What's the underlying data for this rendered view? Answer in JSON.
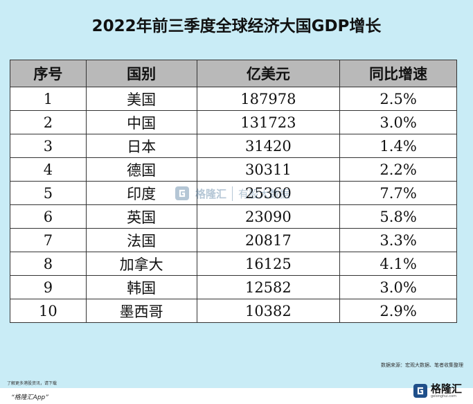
{
  "title": "2022年前三季度全球经济大国GDP增长",
  "table": {
    "headers": [
      "序号",
      "国别",
      "亿美元",
      "同比增速"
    ],
    "rows": [
      [
        "1",
        "美国",
        "187978",
        "2.5%"
      ],
      [
        "2",
        "中国",
        "131723",
        "3.0%"
      ],
      [
        "3",
        "日本",
        "31420",
        "1.4%"
      ],
      [
        "4",
        "德国",
        "30311",
        "2.2%"
      ],
      [
        "5",
        "印度",
        "25360",
        "7.7%"
      ],
      [
        "6",
        "英国",
        "23090",
        "5.8%"
      ],
      [
        "7",
        "法国",
        "20817",
        "3.3%"
      ],
      [
        "8",
        "加拿大",
        "16125",
        "4.1%"
      ],
      [
        "9",
        "韩国",
        "12582",
        "3.0%"
      ],
      [
        "10",
        "墨西哥",
        "10382",
        "2.9%"
      ]
    ]
  },
  "watermark": {
    "brand": "格隆汇",
    "sub": "有股大数据"
  },
  "source": "数据来源：宏观大数据、笔者收集整理",
  "promo": {
    "line1": "了解更多港股资讯，请下载",
    "line2": "“格隆汇App”"
  },
  "brand": {
    "name": "格隆汇",
    "sub": "gelonghui.com"
  },
  "colors": {
    "background": "#c9ecf6",
    "header": "#b9b9b9",
    "cell": "#ffffff",
    "logo": "#1f4f8a"
  }
}
